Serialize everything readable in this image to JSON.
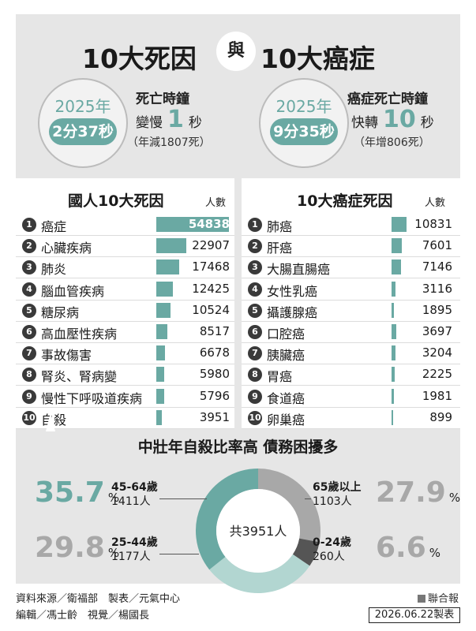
{
  "header": {
    "title_left": "10大死因",
    "title_mid": "與",
    "title_right": "10大癌症"
  },
  "clocks": [
    {
      "year": "2025年",
      "time": "2分37秒",
      "label": "死亡時鐘",
      "change_prefix": "變慢",
      "change_num": "1",
      "change_unit": "秒",
      "note": "（年減1807死）"
    },
    {
      "year": "2025年",
      "time": "9分35秒",
      "label": "癌症死亡時鐘",
      "change_prefix": "快轉",
      "change_num": "10",
      "change_unit": "秒",
      "note": "（年增806死）"
    }
  ],
  "colors": {
    "accent": "#6aa9a3",
    "donut_light": "#b2d6d1",
    "donut_gray": "#a8a8a8",
    "donut_dark": "#555555"
  },
  "tables": [
    {
      "title": "國人10大死因",
      "unit": "人數"
    },
    {
      "title": "10大癌症死因",
      "unit": "人數"
    }
  ],
  "donut": {
    "title": "中壯年自殺比率高  債務困擾多",
    "center": "共3951人",
    "pct_unit": "%",
    "groups": [
      {
        "age": "45-64歲",
        "count": "1411人",
        "pct_text": "35.7"
      },
      {
        "age": "65歲以上",
        "count": "1103人",
        "pct_text": "27.9"
      },
      {
        "age": "25-44歲",
        "count": "1177人",
        "pct_text": "29.8"
      },
      {
        "age": "0-24歲",
        "count": "260人",
        "pct_text": "6.6"
      }
    ]
  },
  "chart_data": [
    {
      "type": "bar",
      "title": "國人10大死因",
      "ylabel": "人數",
      "categories": [
        "癌症",
        "心臟疾病",
        "肺炎",
        "腦血管疾病",
        "糖尿病",
        "高血壓性疾病",
        "事故傷害",
        "腎炎、腎病變",
        "慢性下呼吸道疾病",
        "自殺"
      ],
      "values": [
        54838,
        22907,
        17468,
        12425,
        10524,
        8517,
        6678,
        5980,
        5796,
        3951
      ]
    },
    {
      "type": "bar",
      "title": "10大癌症死因",
      "ylabel": "人數",
      "categories": [
        "肺癌",
        "肝癌",
        "大腸直腸癌",
        "女性乳癌",
        "攝護腺癌",
        "口腔癌",
        "胰臟癌",
        "胃癌",
        "食道癌",
        "卵巢癌"
      ],
      "values": [
        10831,
        7601,
        7146,
        3116,
        1895,
        3697,
        3204,
        2225,
        1981,
        899
      ]
    },
    {
      "type": "pie",
      "title": "中壯年自殺比率高  債務困擾多",
      "categories": [
        "45-64歲",
        "65歲以上",
        "0-24歲",
        "25-44歲"
      ],
      "values": [
        35.7,
        27.9,
        6.6,
        29.8
      ],
      "counts": [
        1411,
        1103,
        260,
        1177
      ]
    }
  ],
  "footer": {
    "source": "資料來源／衛福部　製表／元氣中心",
    "editors": "編輯／馮士齡　視覺／楊國長",
    "brand": "聯合報",
    "date": "2026.06.22製表"
  }
}
